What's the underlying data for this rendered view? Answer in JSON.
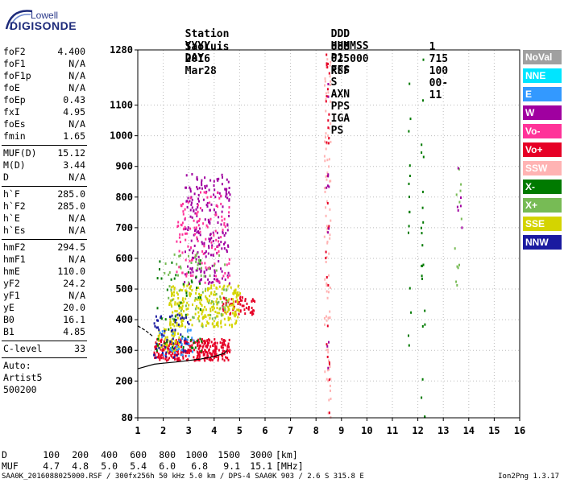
{
  "logo": {
    "lowell": "Lowell",
    "digisonde": "DIGISONDE"
  },
  "header": {
    "row1": [
      "Station",
      "YYYY",
      "DAY",
      "DDD",
      "HHMMSS",
      "P1",
      "FFS",
      "S",
      "AXN",
      "PPS",
      "IGA",
      "PS"
    ],
    "row2": [
      "SaoLuis",
      "2016",
      "Mar28",
      "088",
      "025000",
      "RSF",
      "1",
      "715",
      "100",
      "00-",
      "11"
    ]
  },
  "params": {
    "group1": [
      {
        "name": "foF2",
        "value": "4.400"
      },
      {
        "name": "foF1",
        "value": "N/A"
      },
      {
        "name": "foF1p",
        "value": "N/A"
      },
      {
        "name": "foE",
        "value": "N/A"
      },
      {
        "name": "foEp",
        "value": "0.43"
      },
      {
        "name": "fxI",
        "value": "4.95"
      },
      {
        "name": "foEs",
        "value": "N/A"
      },
      {
        "name": "fmin",
        "value": "1.65"
      }
    ],
    "group2": [
      {
        "name": "MUF(D)",
        "value": "15.12"
      },
      {
        "name": "M(D)",
        "value": "3.44"
      },
      {
        "name": "D",
        "value": "N/A"
      }
    ],
    "group3": [
      {
        "name": "h`F",
        "value": "285.0"
      },
      {
        "name": "h`F2",
        "value": "285.0"
      },
      {
        "name": "h`E",
        "value": "N/A"
      },
      {
        "name": "h`Es",
        "value": "N/A"
      }
    ],
    "group4": [
      {
        "name": "hmF2",
        "value": "294.5"
      },
      {
        "name": "hmF1",
        "value": "N/A"
      },
      {
        "name": "hmE",
        "value": "110.0"
      },
      {
        "name": "yF2",
        "value": "24.2"
      },
      {
        "name": "yF1",
        "value": "N/A"
      },
      {
        "name": "yE",
        "value": "20.0"
      },
      {
        "name": "B0",
        "value": "16.1"
      },
      {
        "name": "B1",
        "value": "4.85"
      }
    ],
    "clevel": {
      "name": "C-level",
      "value": "33"
    },
    "auto": [
      "Auto:",
      "Artist5",
      "500200"
    ]
  },
  "legend": [
    {
      "label": "NoVal",
      "color": "#a0a0a0"
    },
    {
      "label": "NNE",
      "color": "#00e5ff"
    },
    {
      "label": "E",
      "color": "#3399ff"
    },
    {
      "label": "W",
      "color": "#a000a0"
    },
    {
      "label": "Vo-",
      "color": "#ff3399"
    },
    {
      "label": "Vo+",
      "color": "#e60026"
    },
    {
      "label": "SSW",
      "color": "#ffb3b3"
    },
    {
      "label": "X-",
      "color": "#007a00"
    },
    {
      "label": "X+",
      "color": "#77bb55"
    },
    {
      "label": "SSE",
      "color": "#d4d400"
    },
    {
      "label": "NNW",
      "color": "#1a1aa0"
    }
  ],
  "bottom_table": {
    "d_label": "D",
    "distances": [
      "100",
      "200",
      "400",
      "600",
      "800",
      "1000",
      "1500",
      "3000"
    ],
    "d_unit": "[km]",
    "muf_label": "MUF",
    "mufs": [
      "4.7",
      "4.8",
      "5.0",
      "5.4",
      "6.0",
      "6.8",
      "9.1",
      "15.1"
    ],
    "muf_unit": "[MHz]"
  },
  "footer": {
    "left": "SAA0K_2016088025000.RSF / 300fx256h 50 kHz 5.0 km / DPS-4 SAA0K 903 / 2.6 S 315.8 E",
    "right": "Ion2Png 1.3.17"
  },
  "chart_data": {
    "type": "scatter",
    "title": "",
    "xlabel": "",
    "ylabel": "",
    "xlim": [
      1,
      16
    ],
    "ylim": [
      80,
      1280
    ],
    "x_ticks": [
      1,
      2,
      3,
      4,
      5,
      6,
      7,
      8,
      9,
      10,
      11,
      12,
      13,
      14,
      15,
      16
    ],
    "y_ticks": [
      80,
      200,
      300,
      400,
      500,
      600,
      700,
      800,
      900,
      1000,
      1100,
      1280
    ],
    "grid": true,
    "legend_position": "right",
    "trace": {
      "name": "F-trace",
      "x": [
        1.0,
        1.65,
        2.0,
        2.5,
        3.0,
        3.5,
        4.0,
        4.4,
        4.5
      ],
      "y": [
        240,
        255,
        258,
        262,
        267,
        272,
        280,
        290,
        300
      ]
    },
    "trace_e": {
      "x": [
        1.0,
        1.3,
        1.6
      ],
      "y": [
        380,
        365,
        345
      ]
    },
    "clusters": [
      {
        "color": "#e60026",
        "x": [
          1.6,
          4.6
        ],
        "y": [
          270,
          340
        ],
        "n": 320
      },
      {
        "color": "#e60026",
        "x": [
          4.3,
          5.6
        ],
        "y": [
          420,
          480
        ],
        "n": 60
      },
      {
        "color": "#d4d400",
        "x": [
          2.2,
          5.0
        ],
        "y": [
          380,
          520
        ],
        "n": 280
      },
      {
        "color": "#d4d400",
        "x": [
          1.7,
          2.6
        ],
        "y": [
          300,
          380
        ],
        "n": 60
      },
      {
        "color": "#a000a0",
        "x": [
          2.8,
          4.6
        ],
        "y": [
          520,
          880
        ],
        "n": 220
      },
      {
        "color": "#ff3399",
        "x": [
          2.5,
          4.6
        ],
        "y": [
          520,
          820
        ],
        "n": 120
      },
      {
        "color": "#1a1aa0",
        "x": [
          1.6,
          3.0
        ],
        "y": [
          280,
          420
        ],
        "n": 60
      },
      {
        "color": "#007a00",
        "x": [
          1.6,
          3.5
        ],
        "y": [
          300,
          600
        ],
        "n": 50
      },
      {
        "color": "#77bb55",
        "x": [
          2.0,
          4.5
        ],
        "y": [
          380,
          620
        ],
        "n": 70
      },
      {
        "color": "#3399ff",
        "x": [
          1.8,
          3.2
        ],
        "y": [
          280,
          380
        ],
        "n": 30
      },
      {
        "color": "#ffb3b3",
        "x": [
          8.3,
          8.55
        ],
        "y": [
          80,
          1280
        ],
        "n": 90
      },
      {
        "color": "#e60026",
        "x": [
          8.35,
          8.5
        ],
        "y": [
          80,
          1280
        ],
        "n": 30
      },
      {
        "color": "#a000a0",
        "x": [
          8.35,
          8.5
        ],
        "y": [
          200,
          1200
        ],
        "n": 12
      },
      {
        "color": "#007a00",
        "x": [
          11.6,
          11.7
        ],
        "y": [
          250,
          1280
        ],
        "n": 15
      },
      {
        "color": "#007a00",
        "x": [
          12.1,
          12.25
        ],
        "y": [
          80,
          1280
        ],
        "n": 25
      },
      {
        "color": "#77bb55",
        "x": [
          13.4,
          13.7
        ],
        "y": [
          280,
          900
        ],
        "n": 12
      },
      {
        "color": "#a000a0",
        "x": [
          13.5,
          13.8
        ],
        "y": [
          500,
          900
        ],
        "n": 6
      }
    ]
  }
}
